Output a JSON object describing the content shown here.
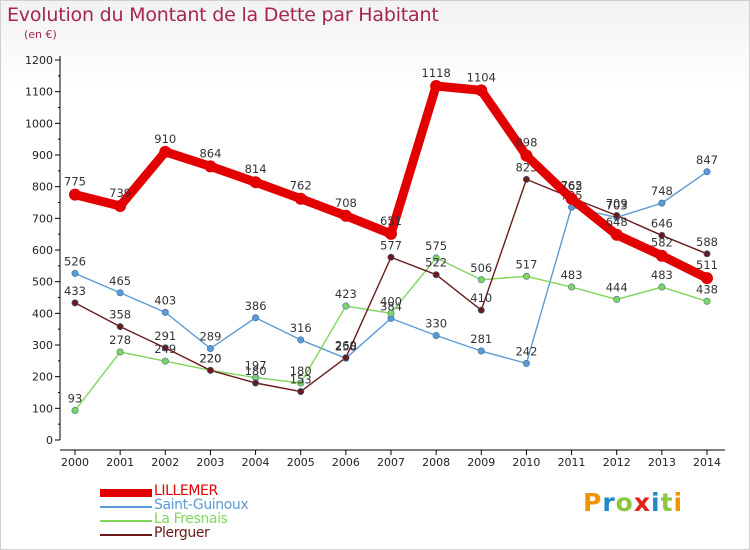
{
  "title": "Evolution du Montant de la Dette par Habitant",
  "unit_label": "(en €)",
  "logo": {
    "text": "Proxiti",
    "colors": [
      "#f29400",
      "#1e88c8",
      "#8cc63f",
      "#e2231a",
      "#1e88c8",
      "#8cc63f",
      "#f29400"
    ]
  },
  "chart_data": {
    "type": "line",
    "title": "Evolution du Montant de la Dette par Habitant",
    "ylabel": "(en €)",
    "xlabel": "",
    "x": [
      2000,
      2001,
      2002,
      2003,
      2004,
      2005,
      2006,
      2007,
      2008,
      2009,
      2010,
      2011,
      2012,
      2013,
      2014
    ],
    "ylim": [
      0,
      1200
    ],
    "yticks": [
      0,
      100,
      200,
      300,
      400,
      500,
      600,
      700,
      800,
      900,
      1000,
      1100,
      1200
    ],
    "grid": false,
    "legend_position": "bottom-left",
    "series": [
      {
        "name": "LILLEMER",
        "color": "#e20000",
        "values": [
          775,
          739,
          910,
          864,
          814,
          762,
          708,
          651,
          1118,
          1104,
          898,
          762,
          648,
          582,
          511
        ]
      },
      {
        "name": "Saint-Guinoux",
        "color": "#5b9bd5",
        "values": [
          526,
          465,
          403,
          289,
          386,
          316,
          258,
          384,
          330,
          281,
          242,
          735,
          703,
          748,
          847
        ]
      },
      {
        "name": "La Fresnais",
        "color": "#7fd65a",
        "values": [
          93,
          278,
          249,
          220,
          197,
          180,
          423,
          400,
          575,
          506,
          517,
          483,
          444,
          483,
          438
        ]
      },
      {
        "name": "Plerguer",
        "color": "#6b1a1a",
        "values": [
          433,
          358,
          291,
          220,
          180,
          153,
          260,
          577,
          522,
          410,
          823,
          765,
          709,
          646,
          588
        ]
      }
    ]
  }
}
